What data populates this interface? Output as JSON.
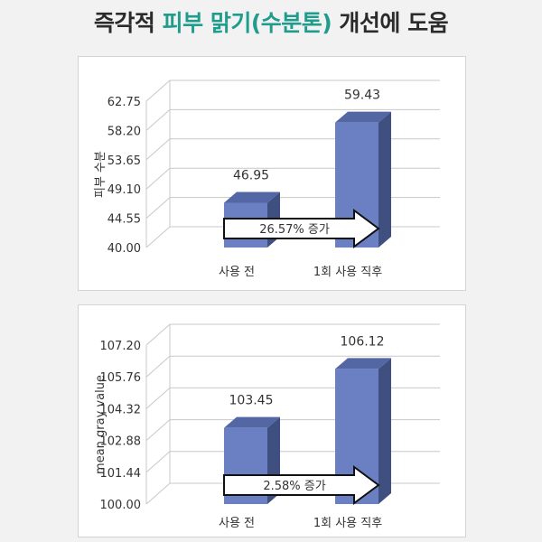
{
  "title": {
    "part1": "즉각적 ",
    "part2": "피부 맑기(수분톤)",
    "part3": " 개선에 도움"
  },
  "colors": {
    "highlight": "#1f9c8c",
    "bar_front": "#6b80c2",
    "bar_side": "#3f4f80",
    "bar_top": "#5467a5",
    "arrow_fill": "#ffffff",
    "arrow_stroke": "#111111"
  },
  "chart_data": [
    {
      "type": "bar",
      "ylabel": "피부 수분",
      "categories": [
        "사용 전",
        "1회 사용 직후"
      ],
      "values": [
        46.95,
        59.43
      ],
      "value_labels": [
        "46.95",
        "59.43"
      ],
      "yticks": [
        40.0,
        44.55,
        49.1,
        53.65,
        58.2,
        62.75
      ],
      "ytick_labels": [
        "40.00",
        "44.55",
        "49.10",
        "53.65",
        "58.20",
        "62.75"
      ],
      "ylim": [
        40.0,
        62.75
      ],
      "grid": true,
      "annotation": "26.57% 증가"
    },
    {
      "type": "bar",
      "ylabel": "mean gray value",
      "categories": [
        "사용 전",
        "1회 사용 직후"
      ],
      "values": [
        103.45,
        106.12
      ],
      "value_labels": [
        "103.45",
        "106.12"
      ],
      "yticks": [
        100.0,
        101.44,
        102.88,
        104.32,
        105.76,
        107.2
      ],
      "ytick_labels": [
        "100.00",
        "101.44",
        "102.88",
        "104.32",
        "105.76",
        "107.20"
      ],
      "ylim": [
        100.0,
        107.2
      ],
      "grid": true,
      "annotation": "2.58% 증가"
    }
  ]
}
